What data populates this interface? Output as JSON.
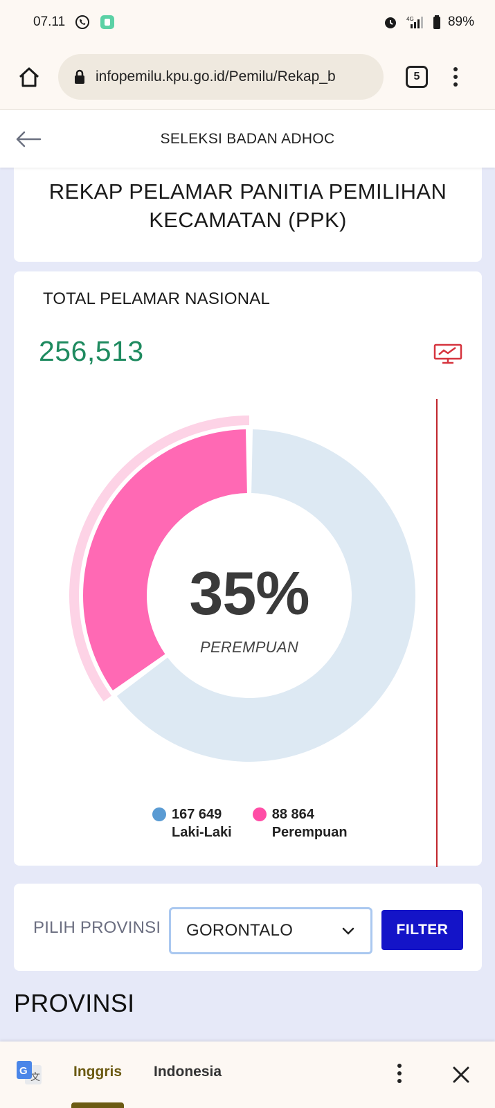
{
  "status_bar": {
    "time": "07.11",
    "network": "4G",
    "battery": "89%"
  },
  "browser": {
    "url": "infopemilu.kpu.go.id/Pemilu/Rekap_b",
    "tab_count": "5"
  },
  "header": {
    "title": "SELEKSI BADAN ADHOC"
  },
  "page": {
    "title": "REKAP PELAMAR PANITIA PEMILIHAN KECAMATAN (PPK)"
  },
  "stats": {
    "total_label": "TOTAL PELAMAR NASIONAL",
    "total_value": "256,513",
    "percent_label": "35%",
    "percent_sub": "PEREMPUAN",
    "female_fraction": 0.35,
    "legend": [
      {
        "value": "167 649",
        "label": "Laki-Laki",
        "color": "#5a9bd3"
      },
      {
        "value": "88 864",
        "label": "Perempuan",
        "color": "#ff4da6"
      }
    ],
    "colors": {
      "male_arc": "#dde9f3",
      "female_arc": "#ff69b4",
      "female_outer": "#fdd3e6"
    }
  },
  "filter": {
    "label": "PILIH PROVINSI",
    "selected": "GORONTALO",
    "button": "FILTER"
  },
  "section": {
    "title": "PROVINSI"
  },
  "translate_bar": {
    "active_lang": "Inggris",
    "other_lang": "Indonesia"
  }
}
